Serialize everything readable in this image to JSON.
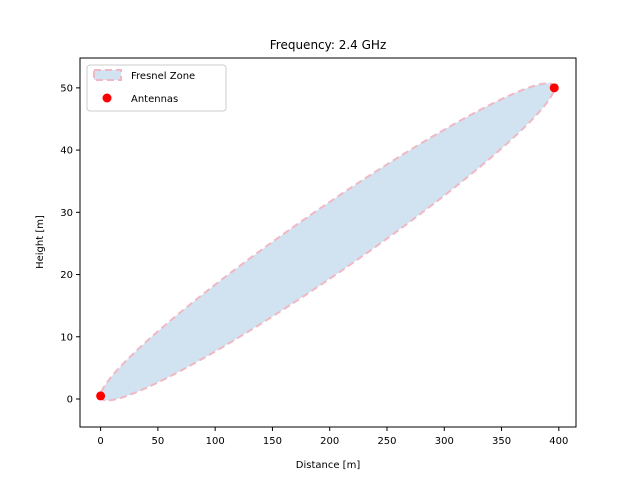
{
  "chart_data": {
    "type": "scatter",
    "title": "Frequency: 2.4 GHz",
    "xlabel": "Distance [m]",
    "ylabel": "Height [m]",
    "xlim": [
      -18,
      415
    ],
    "ylim": [
      -4.5,
      54.8
    ],
    "xticks": [
      0,
      50,
      100,
      150,
      200,
      250,
      300,
      350,
      400
    ],
    "yticks": [
      0,
      10,
      20,
      30,
      40,
      50
    ],
    "grid": false,
    "legend": {
      "placement": "top-left",
      "entries": [
        "Fresnel Zone",
        "Antennas"
      ]
    },
    "series": [
      {
        "name": "Fresnel Zone",
        "kind": "ellipse",
        "endpoints": [
          [
            0,
            0.5
          ],
          [
            396,
            50
          ]
        ],
        "max_radius": 6.13,
        "fill_color": "#d1e2f0",
        "edge_color": "#f0b8c4"
      },
      {
        "name": "Antennas",
        "kind": "points",
        "points": [
          [
            0,
            0.5
          ],
          [
            396,
            50
          ]
        ],
        "color": "#ff0000"
      }
    ]
  }
}
